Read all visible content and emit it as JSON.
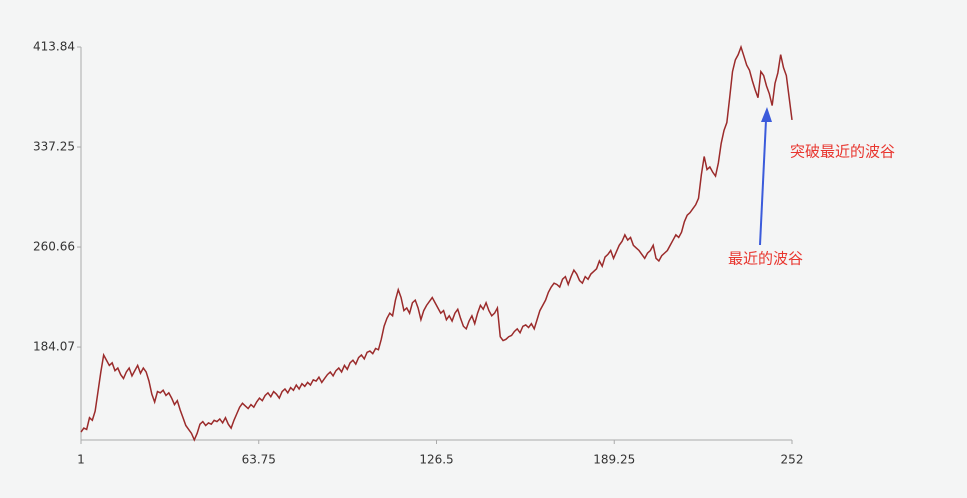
{
  "chart_data": {
    "type": "line",
    "x": [
      1,
      2,
      3,
      4,
      5,
      6,
      7,
      8,
      9,
      10,
      11,
      12,
      13,
      14,
      15,
      16,
      17,
      18,
      19,
      20,
      21,
      22,
      23,
      24,
      25,
      26,
      27,
      28,
      29,
      30,
      31,
      32,
      33,
      34,
      35,
      36,
      37,
      38,
      39,
      40,
      41,
      42,
      43,
      44,
      45,
      46,
      47,
      48,
      49,
      50,
      51,
      52,
      53,
      54,
      55,
      56,
      57,
      58,
      59,
      60,
      61,
      62,
      63,
      64,
      65,
      66,
      67,
      68,
      69,
      70,
      71,
      72,
      73,
      74,
      75,
      76,
      77,
      78,
      79,
      80,
      81,
      82,
      83,
      84,
      85,
      86,
      87,
      88,
      89,
      90,
      91,
      92,
      93,
      94,
      95,
      96,
      97,
      98,
      99,
      100,
      101,
      102,
      103,
      104,
      105,
      106,
      107,
      108,
      109,
      110,
      111,
      112,
      113,
      114,
      115,
      116,
      117,
      118,
      119,
      120,
      121,
      122,
      123,
      124,
      125,
      126,
      127,
      128,
      129,
      130,
      131,
      132,
      133,
      134,
      135,
      136,
      137,
      138,
      139,
      140,
      141,
      142,
      143,
      144,
      145,
      146,
      147,
      148,
      149,
      150,
      151,
      152,
      153,
      154,
      155,
      156,
      157,
      158,
      159,
      160,
      161,
      162,
      163,
      164,
      165,
      166,
      167,
      168,
      169,
      170,
      171,
      172,
      173,
      174,
      175,
      176,
      177,
      178,
      179,
      180,
      181,
      182,
      183,
      184,
      185,
      186,
      187,
      188,
      189,
      190,
      191,
      192,
      193,
      194,
      195,
      196,
      197,
      198,
      199,
      200,
      201,
      202,
      203,
      204,
      205,
      206,
      207,
      208,
      209,
      210,
      211,
      212,
      213,
      214,
      215,
      216,
      217,
      218,
      219,
      220,
      221,
      222,
      223,
      224,
      225,
      226,
      227,
      228,
      229,
      230,
      231,
      232,
      233,
      234,
      235,
      236,
      237,
      238,
      239,
      240,
      241,
      242,
      243,
      244,
      245,
      246,
      247,
      248,
      249,
      250,
      251,
      252
    ],
    "series": [
      {
        "color": "#9b2b2b",
        "values": [
          119,
          122,
          121,
          130,
          128,
          135,
          150,
          165,
          178,
          174,
          170,
          172,
          166,
          168,
          163,
          160,
          165,
          168,
          162,
          166,
          170,
          164,
          168,
          165,
          158,
          148,
          142,
          150,
          149,
          151,
          147,
          149,
          145,
          140,
          143,
          136,
          130,
          124,
          121,
          118,
          113,
          118,
          125,
          127,
          124,
          126,
          125,
          128,
          127,
          129,
          126,
          130,
          125,
          122,
          128,
          133,
          138,
          141,
          139,
          137,
          140,
          138,
          142,
          145,
          143,
          147,
          149,
          146,
          150,
          148,
          145,
          150,
          152,
          149,
          153,
          151,
          155,
          152,
          156,
          154,
          157,
          155,
          159,
          158,
          161,
          157,
          160,
          163,
          165,
          162,
          166,
          168,
          165,
          170,
          167,
          172,
          174,
          171,
          176,
          178,
          175,
          180,
          181,
          179,
          183,
          182,
          190,
          200,
          206,
          210,
          208,
          220,
          228,
          222,
          212,
          214,
          210,
          218,
          220,
          214,
          205,
          212,
          216,
          219,
          222,
          218,
          214,
          210,
          212,
          205,
          208,
          204,
          210,
          213,
          206,
          200,
          198,
          204,
          208,
          202,
          210,
          216,
          213,
          218,
          212,
          208,
          210,
          214,
          192,
          189,
          190,
          192,
          193,
          196,
          198,
          195,
          200,
          201,
          199,
          202,
          198,
          205,
          212,
          216,
          220,
          226,
          230,
          233,
          232,
          230,
          236,
          238,
          232,
          238,
          243,
          240,
          235,
          233,
          238,
          236,
          240,
          242,
          244,
          250,
          246,
          253,
          255,
          258,
          252,
          257,
          262,
          265,
          270,
          266,
          268,
          262,
          260,
          258,
          255,
          252,
          256,
          258,
          262,
          252,
          250,
          254,
          256,
          258,
          262,
          266,
          270,
          268,
          272,
          280,
          285,
          287,
          290,
          293,
          298,
          316,
          330,
          320,
          322,
          318,
          315,
          325,
          340,
          350,
          356,
          375,
          395,
          404,
          408,
          413.84,
          407,
          400,
          396,
          388,
          381,
          375,
          395,
          392,
          384,
          378,
          369,
          386,
          394,
          408,
          398,
          392,
          375,
          358
        ]
      }
    ],
    "xlim": [
      1,
      252
    ],
    "xticks": [
      1,
      63.75,
      126.5,
      189.25,
      252
    ],
    "ylim": [
      112.9,
      413.84
    ],
    "yticks": [
      184.07,
      260.66,
      337.25,
      413.84
    ],
    "annotations": [
      "突破最近的波谷",
      "最近的波谷"
    ]
  }
}
